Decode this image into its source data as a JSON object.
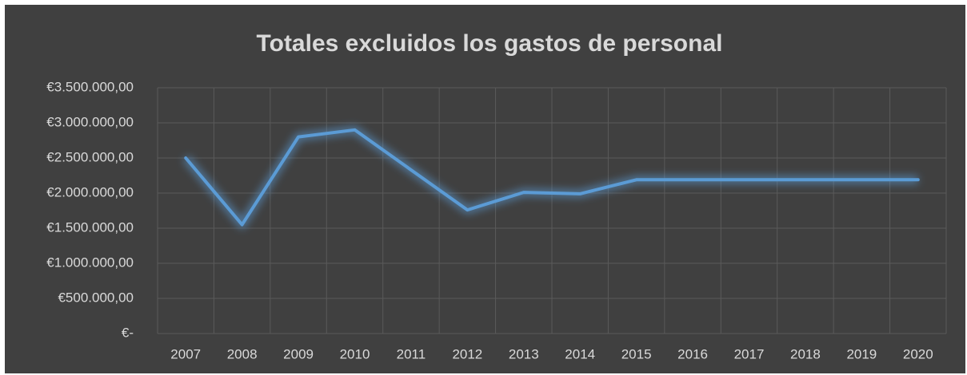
{
  "chart_data": {
    "type": "line",
    "title": "Totales excluidos los gastos de personal",
    "categories": [
      "2007",
      "2008",
      "2009",
      "2010",
      "2011",
      "2012",
      "2013",
      "2014",
      "2015",
      "2016",
      "2017",
      "2018",
      "2019",
      "2020"
    ],
    "series": [
      {
        "name": "Totales",
        "color": "#5b9bd5",
        "values": [
          2500000,
          1550000,
          2800000,
          2900000,
          2330000,
          1760000,
          2010000,
          1990000,
          2190000,
          2190000,
          2190000,
          2190000,
          2190000,
          2190000
        ]
      }
    ],
    "ylim": [
      0,
      3500000
    ],
    "yticks": [
      {
        "value": 0,
        "label": "€-"
      },
      {
        "value": 500000,
        "label": "€500.000,00"
      },
      {
        "value": 1000000,
        "label": "€1.000.000,00"
      },
      {
        "value": 1500000,
        "label": "€1.500.000,00"
      },
      {
        "value": 2000000,
        "label": "€2.000.000,00"
      },
      {
        "value": 2500000,
        "label": "€2.500.000,00"
      },
      {
        "value": 3000000,
        "label": "€3.000.000,00"
      },
      {
        "value": 3500000,
        "label": "€3.500.000,00"
      }
    ],
    "grid": true
  }
}
